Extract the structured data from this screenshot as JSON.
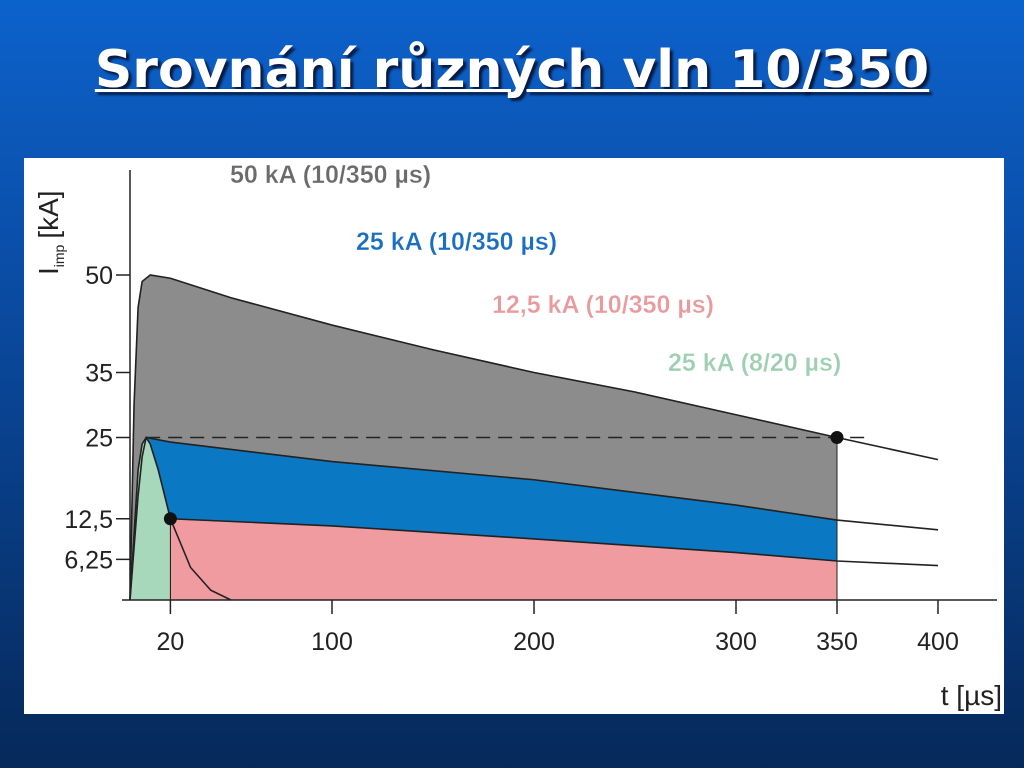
{
  "title": "Srovnání různých vln 10/350",
  "chart_data": {
    "type": "area",
    "y_label": {
      "main": "I",
      "sub": "imp",
      "unit": "[kA]"
    },
    "x_label": "t [µs]",
    "xlim": [
      0,
      430
    ],
    "ylim": [
      0,
      66
    ],
    "xticks": [
      20,
      100,
      200,
      300,
      350,
      400
    ],
    "yticks": [
      {
        "value": 6.25,
        "label": "6,25"
      },
      {
        "value": 12.5,
        "label": "12,5"
      },
      25,
      35,
      50
    ],
    "series": [
      {
        "name": "50 kA (10/350 µs)",
        "color": "#8c8c8c",
        "label_color": "#6b6b6b",
        "fill_until": 350,
        "x": [
          0,
          2,
          4,
          6,
          10,
          20,
          50,
          100,
          150,
          200,
          250,
          300,
          350,
          400
        ],
        "values": [
          0,
          30,
          45,
          49,
          50,
          49.5,
          46.5,
          42.3,
          38.5,
          35,
          32,
          28.5,
          25,
          21.6
        ]
      },
      {
        "name": "25 kA (10/350 µs)",
        "color": "#0a78c2",
        "label_color": "#1a6fc0",
        "fill_until": 350,
        "x": [
          0,
          2,
          4,
          6,
          8,
          20,
          100,
          200,
          300,
          350,
          400
        ],
        "values": [
          0,
          8,
          16,
          22,
          25,
          24.3,
          21.3,
          18.5,
          14.6,
          12.3,
          10.8
        ]
      },
      {
        "name": "12,5 kA (10/350 µs)",
        "color": "#ef9ba0",
        "label_color": "#e89a9e",
        "fill_until": 350,
        "x": [
          20,
          100,
          200,
          300,
          350,
          400
        ],
        "values": [
          12.5,
          11.4,
          9.4,
          7.3,
          6.0,
          5.3
        ]
      },
      {
        "name": "25 kA (8/20 µs)",
        "color": "#a8d8bc",
        "label_color": "#9fcfb2",
        "fill_until": 20,
        "x": [
          0,
          2,
          4,
          6,
          8,
          10,
          14,
          20,
          30,
          40,
          50
        ],
        "values": [
          0,
          10,
          20,
          24,
          25,
          24,
          20,
          12.5,
          5,
          1.5,
          0
        ]
      }
    ],
    "reference_line": {
      "y": 25,
      "x": [
        8,
        365
      ]
    },
    "markers": [
      {
        "x": 20,
        "y": 12.5
      },
      {
        "x": 350,
        "y": 25
      }
    ]
  }
}
